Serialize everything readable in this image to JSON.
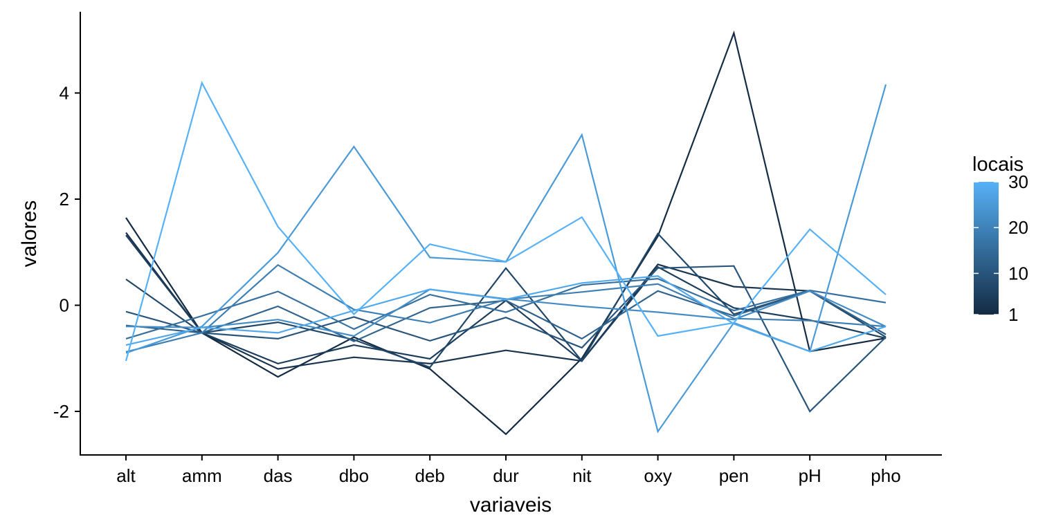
{
  "chart_data": {
    "type": "line",
    "xlabel": "variaveis",
    "ylabel": "valores",
    "categories": [
      "alt",
      "amm",
      "das",
      "dbo",
      "deb",
      "dur",
      "nit",
      "oxy",
      "pen",
      "pH",
      "pho"
    ],
    "ylim": [
      -2.8,
      5.3
    ],
    "yticks": [
      -2,
      0,
      2,
      4
    ],
    "ytick_labels": [
      "-2",
      "0",
      "2",
      "4"
    ],
    "grid": false,
    "legend": {
      "title": "locais",
      "placement": "right",
      "ticks": [
        1,
        10,
        20,
        30
      ],
      "tick_labels": [
        "1",
        "10",
        "20",
        "30"
      ],
      "range": [
        1,
        30
      ],
      "color_low": "#132B43",
      "color_high": "#56B1F7"
    },
    "series": [
      {
        "local": 1,
        "values": [
          1.65,
          -0.52,
          -1.35,
          -0.6,
          -1.2,
          -2.43,
          -1.0,
          1.3,
          5.13,
          -0.87,
          -0.62
        ]
      },
      {
        "local": 3,
        "values": [
          1.37,
          -0.52,
          -1.2,
          -0.98,
          -1.1,
          -0.85,
          -1.05,
          0.77,
          0.35,
          0.27,
          -0.55
        ]
      },
      {
        "local": 5,
        "values": [
          1.32,
          -0.52,
          -1.1,
          -0.75,
          -1.01,
          0.09,
          -1.05,
          0.72,
          -0.05,
          -0.28,
          -0.62
        ]
      },
      {
        "local": 7,
        "values": [
          0.49,
          -0.52,
          -0.32,
          -0.65,
          -1.17,
          0.7,
          -1.05,
          1.35,
          -0.17,
          0.27,
          -0.6
        ]
      },
      {
        "local": 10,
        "values": [
          -0.12,
          -0.52,
          -0.63,
          -0.22,
          -0.67,
          -0.23,
          -0.8,
          0.7,
          0.74,
          -2.0,
          -0.6
        ]
      },
      {
        "local": 13,
        "values": [
          -0.38,
          -0.52,
          -0.02,
          -0.68,
          -0.05,
          0.09,
          -0.63,
          0.27,
          -0.2,
          0.27,
          -0.55
        ]
      },
      {
        "local": 16,
        "values": [
          -0.63,
          -0.2,
          0.26,
          -0.45,
          0.2,
          -0.13,
          0.38,
          0.5,
          -0.1,
          0.28,
          0.05
        ]
      },
      {
        "local": 19,
        "values": [
          -0.88,
          -0.52,
          0.76,
          -0.08,
          -0.33,
          0.11,
          0.25,
          0.4,
          -0.25,
          -0.29,
          -0.4
        ]
      },
      {
        "local": 22,
        "values": [
          -0.4,
          -0.42,
          -0.27,
          -0.58,
          0.3,
          0.12,
          -0.02,
          -0.13,
          -0.27,
          0.27,
          -0.4
        ]
      },
      {
        "local": 25,
        "values": [
          -0.9,
          -0.4,
          0.99,
          2.99,
          0.9,
          0.82,
          3.21,
          -2.38,
          -0.33,
          -0.87,
          4.16
        ]
      },
      {
        "local": 28,
        "values": [
          -0.75,
          -0.42,
          -0.52,
          -0.1,
          0.3,
          0.11,
          0.42,
          0.55,
          -0.35,
          -0.87,
          -0.4
        ]
      },
      {
        "local": 30,
        "values": [
          -1.05,
          4.19,
          1.48,
          -0.17,
          1.15,
          0.82,
          1.66,
          -0.58,
          -0.33,
          1.43,
          0.2
        ]
      }
    ]
  }
}
